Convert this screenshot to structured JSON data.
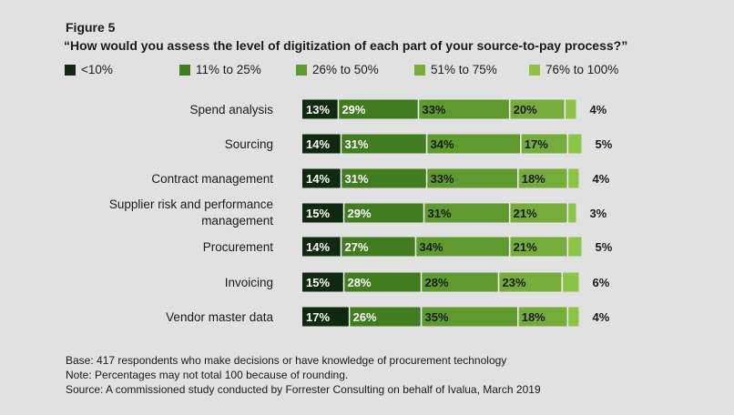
{
  "figure_label": "Figure 5",
  "title": "“How would you assess the level of digitization of each part of your source-to-pay process?”",
  "chart_data": {
    "type": "bar",
    "stacked": true,
    "orientation": "horizontal",
    "categories": [
      "Spend analysis",
      "Sourcing",
      "Contract management",
      "Supplier risk and performance management",
      "Procurement",
      "Invoicing",
      "Vendor master data"
    ],
    "category_lines": [
      [
        "Spend analysis"
      ],
      [
        "Sourcing"
      ],
      [
        "Contract management"
      ],
      [
        "Supplier risk and performance",
        "management"
      ],
      [
        "Procurement"
      ],
      [
        "Invoicing"
      ],
      [
        "Vendor master data"
      ]
    ],
    "series": [
      {
        "name": "<10%",
        "color": "#0f2a0f",
        "values": [
          13,
          14,
          14,
          15,
          14,
          15,
          17
        ]
      },
      {
        "name": "11% to 25%",
        "color": "#417d20",
        "values": [
          29,
          31,
          31,
          29,
          27,
          28,
          26
        ]
      },
      {
        "name": "26% to 50%",
        "color": "#5f9a2f",
        "values": [
          33,
          34,
          33,
          31,
          34,
          28,
          35
        ]
      },
      {
        "name": "51% to 75%",
        "color": "#76ac3c",
        "values": [
          20,
          17,
          18,
          21,
          21,
          23,
          18
        ]
      },
      {
        "name": "76% to 100%",
        "color": "#8cc44a",
        "values": [
          4,
          5,
          4,
          3,
          5,
          6,
          4
        ]
      }
    ],
    "value_suffix": "%",
    "legend_position": "top",
    "grid": false
  },
  "notes": [
    "Base: 417 respondents who make decisions or have knowledge of procurement technology",
    "Note: Percentages may not total 100 because of rounding.",
    "Source: A commissioned study conducted by Forrester Consulting on behalf of Ivalua, March 2019"
  ]
}
